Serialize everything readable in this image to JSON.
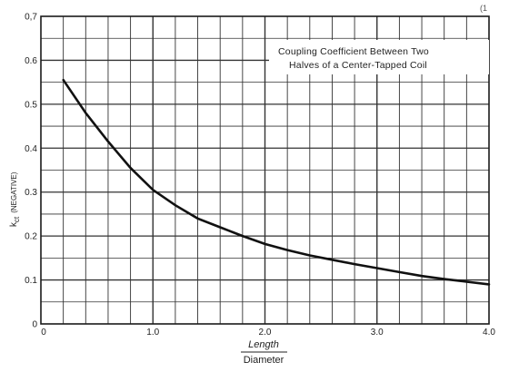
{
  "chart_data": {
    "type": "line",
    "annotation": [
      "Coupling Coefficient Between Two",
      "Halves of a Center-Tapped Coil"
    ],
    "ylabel_main": "k",
    "ylabel_sub": "ct",
    "ylabel_note": "(NEGATIVE)",
    "xlabel_num": "Length",
    "xlabel_den": "Diameter",
    "xlim": [
      0,
      4.0
    ],
    "ylim": [
      0,
      0.7
    ],
    "x_ticks": [
      {
        "value": 0,
        "label": "0"
      },
      {
        "value": 1.0,
        "label": "1.0"
      },
      {
        "value": 2.0,
        "label": "2.0"
      },
      {
        "value": 3.0,
        "label": "3.0"
      },
      {
        "value": 4.0,
        "label": "4.0"
      }
    ],
    "y_ticks": [
      {
        "value": 0,
        "label": "0"
      },
      {
        "value": 0.1,
        "label": "0.1"
      },
      {
        "value": 0.2,
        "label": "0.2"
      },
      {
        "value": 0.3,
        "label": "0.3"
      },
      {
        "value": 0.4,
        "label": "0.4"
      },
      {
        "value": 0.5,
        "label": "0.5"
      },
      {
        "value": 0.6,
        "label": "0.6"
      },
      {
        "value": 0.7,
        "label": "0,7"
      }
    ],
    "grid": true,
    "series": [
      {
        "x": [
          0.2,
          0.4,
          0.6,
          0.8,
          1.0,
          1.2,
          1.4,
          1.6,
          1.8,
          2.0,
          2.2,
          2.4,
          2.6,
          2.8,
          3.0,
          3.2,
          3.4,
          3.6,
          3.8,
          4.0
        ],
        "y": [
          0.555,
          0.48,
          0.415,
          0.355,
          0.305,
          0.27,
          0.24,
          0.22,
          0.2,
          0.182,
          0.168,
          0.156,
          0.146,
          0.136,
          0.127,
          0.118,
          0.109,
          0.102,
          0.096,
          0.09
        ]
      }
    ]
  }
}
